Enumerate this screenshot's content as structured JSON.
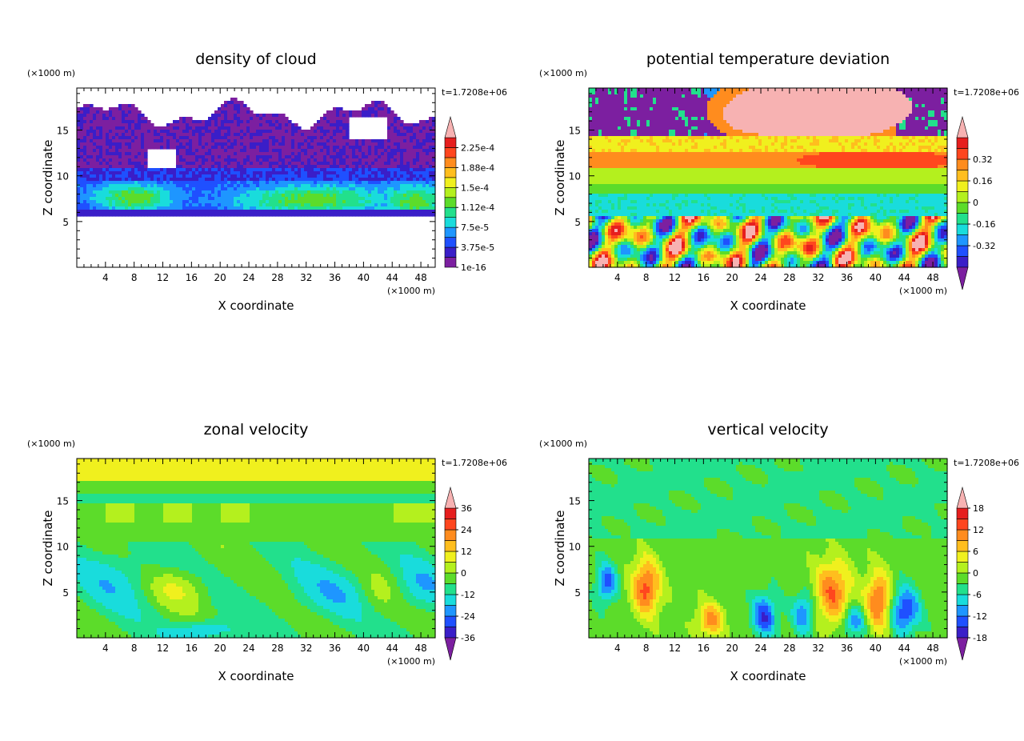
{
  "chart_data": [
    {
      "type": "heatmap",
      "title": "density of cloud",
      "xlabel": "X coordinate",
      "ylabel": "Z coordinate",
      "x_unit": "(×1000 m)",
      "y_unit": "(×1000 m)",
      "time_label": "t=1.7208e+06",
      "xlim": [
        0,
        50
      ],
      "ylim": [
        0,
        19.6
      ],
      "x_ticks": [
        "4",
        "8",
        "12",
        "16",
        "20",
        "24",
        "28",
        "32",
        "36",
        "40",
        "44",
        "48"
      ],
      "y_ticks": [
        "5",
        "10",
        "15"
      ],
      "colorbar_labels": [
        "1e-16",
        "3.75e-5",
        "7.5e-5",
        "1.12e-4",
        "1.5e-4",
        "1.88e-4",
        "2.25e-4"
      ],
      "colorbar_extend": "max",
      "field": "cloud"
    },
    {
      "type": "heatmap",
      "title": "potential temperature deviation",
      "xlabel": "X coordinate",
      "ylabel": "Z coordinate",
      "x_unit": "(×1000 m)",
      "y_unit": "(×1000 m)",
      "time_label": "t=1.7208e+06",
      "xlim": [
        0,
        50
      ],
      "ylim": [
        0,
        19.6
      ],
      "x_ticks": [
        "4",
        "8",
        "12",
        "16",
        "20",
        "24",
        "28",
        "32",
        "36",
        "40",
        "44",
        "48"
      ],
      "y_ticks": [
        "5",
        "10",
        "15"
      ],
      "colorbar_labels": [
        "-0.32",
        "-0.16",
        "0",
        "0.16",
        "0.32"
      ],
      "colorbar_extend": "both",
      "field": "theta"
    },
    {
      "type": "heatmap",
      "title": "zonal velocity",
      "xlabel": "X coordinate",
      "ylabel": "Z coordinate",
      "x_unit": "(×1000 m)",
      "y_unit": "(×1000 m)",
      "time_label": "t=1.7208e+06",
      "xlim": [
        0,
        50
      ],
      "ylim": [
        0,
        19.6
      ],
      "x_ticks": [
        "4",
        "8",
        "12",
        "16",
        "20",
        "24",
        "28",
        "32",
        "36",
        "40",
        "44",
        "48"
      ],
      "y_ticks": [
        "5",
        "10",
        "15"
      ],
      "colorbar_labels": [
        "-36",
        "-24",
        "-12",
        "0",
        "12",
        "24",
        "36"
      ],
      "colorbar_extend": "both",
      "field": "u"
    },
    {
      "type": "heatmap",
      "title": "vertical velocity",
      "xlabel": "X coordinate",
      "ylabel": "Z coordinate",
      "x_unit": "(×1000 m)",
      "y_unit": "(×1000 m)",
      "time_label": "t=1.7208e+06",
      "xlim": [
        0,
        50
      ],
      "ylim": [
        0,
        19.6
      ],
      "x_ticks": [
        "4",
        "8",
        "12",
        "16",
        "20",
        "24",
        "28",
        "32",
        "36",
        "40",
        "44",
        "48"
      ],
      "y_ticks": [
        "5",
        "10",
        "15"
      ],
      "colorbar_labels": [
        "-18",
        "-12",
        "-6",
        "0",
        "6",
        "12",
        "18"
      ],
      "colorbar_extend": "both",
      "field": "w"
    }
  ]
}
